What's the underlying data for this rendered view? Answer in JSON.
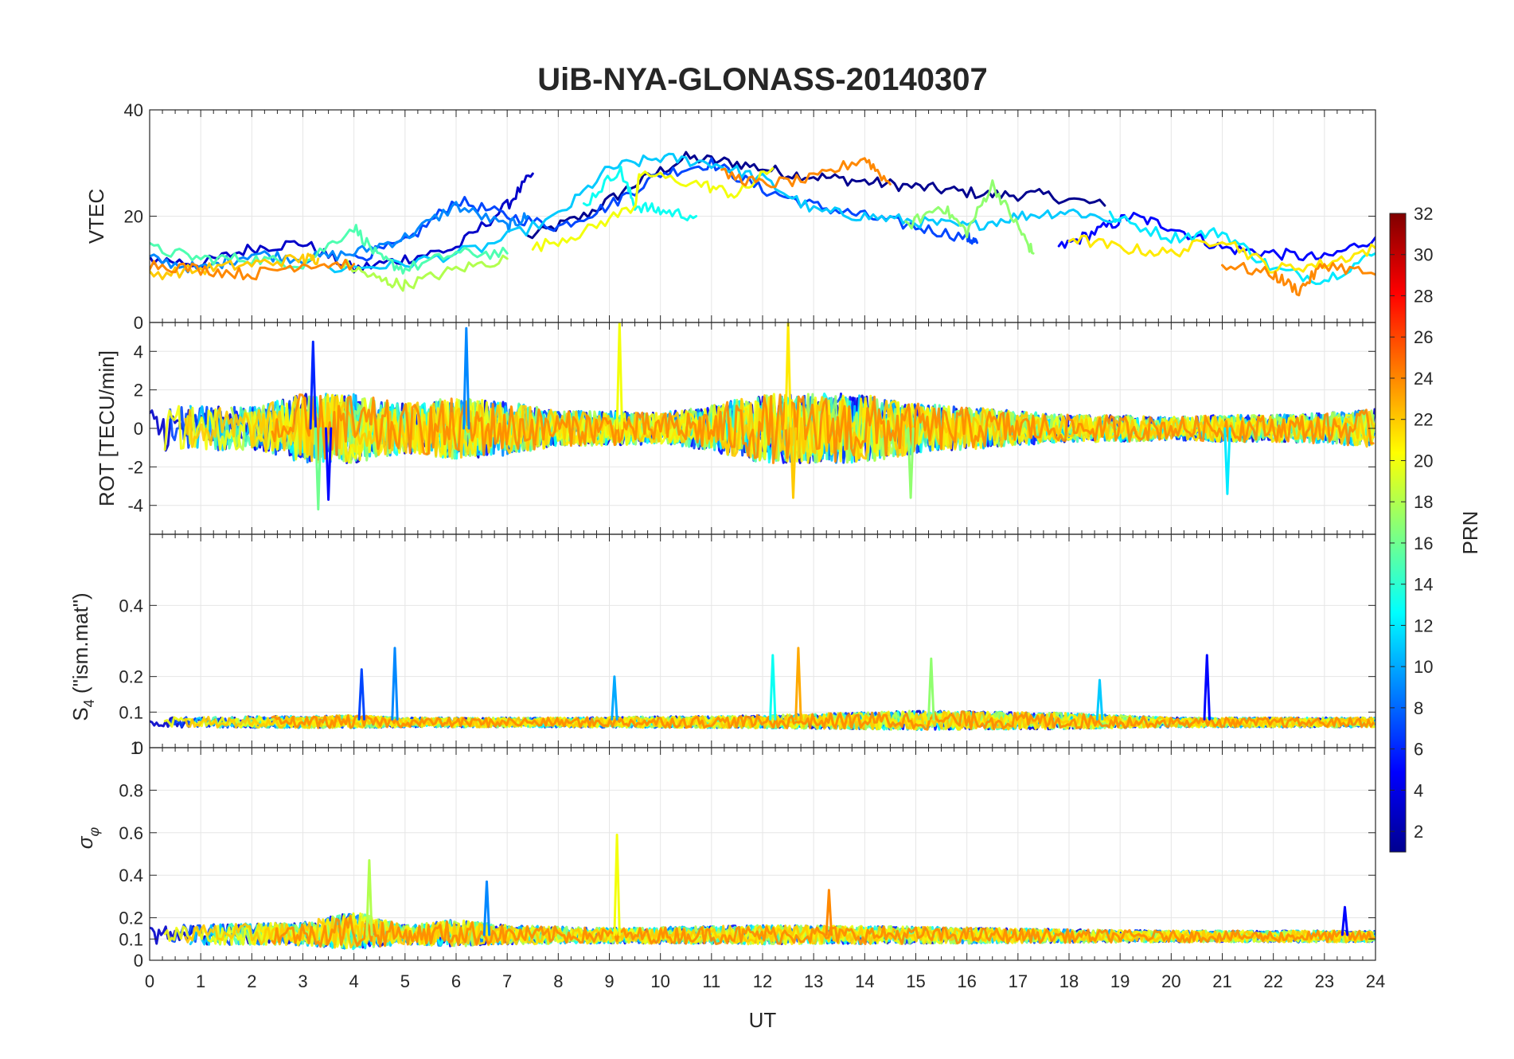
{
  "chart_data": {
    "type": "line",
    "title": "UiB-NYA-GLONASS-20140307",
    "xlabel": "UT",
    "xlim": [
      0,
      24
    ],
    "xticks": [
      "0",
      "1",
      "2",
      "3",
      "4",
      "5",
      "6",
      "7",
      "8",
      "9",
      "10",
      "11",
      "12",
      "13",
      "14",
      "15",
      "16",
      "17",
      "18",
      "19",
      "20",
      "21",
      "22",
      "23",
      "24"
    ],
    "colorbar": {
      "label": "PRN",
      "range": [
        1,
        32
      ],
      "ticks": [
        "2",
        "4",
        "6",
        "8",
        "10",
        "12",
        "14",
        "16",
        "18",
        "20",
        "22",
        "24",
        "26",
        "28",
        "30",
        "32"
      ]
    },
    "panels": [
      {
        "id": "vtec",
        "ylabel": "VTEC",
        "ylim": [
          0,
          40
        ],
        "yticks": [
          {
            "v": 0,
            "label": "0"
          },
          {
            "v": 20,
            "label": "20"
          },
          {
            "v": 40,
            "label": "40"
          }
        ],
        "series": [
          {
            "prn": 1,
            "x": [
              7.4,
              8.5,
              9.5,
              10.5,
              11.5,
              12.5,
              13.5,
              14.5,
              15.5,
              16.5,
              17.5,
              18.7
            ],
            "y": [
              16,
              20,
              26,
              31,
              30,
              28,
              27,
              26,
              25,
              24,
              24,
              22
            ]
          },
          {
            "prn": 3,
            "x": [
              0,
              1,
              2,
              3,
              4,
              5,
              6,
              7,
              7.5
            ],
            "y": [
              12,
              11,
              14,
              15,
              10,
              12,
              14,
              22,
              28
            ]
          },
          {
            "prn": 5,
            "x": [
              17.8,
              18.5,
              19.2,
              20,
              21,
              22,
              23,
              24
            ],
            "y": [
              14,
              17,
              20,
              18,
              14,
              13,
              12,
              16
            ]
          },
          {
            "prn": 7,
            "x": [
              4,
              5,
              6,
              7,
              8,
              9,
              10,
              11,
              12,
              13,
              14,
              15,
              16,
              16.2
            ],
            "y": [
              12,
              15,
              23,
              20,
              18,
              22,
              28,
              30,
              25,
              22,
              20,
              18,
              16,
              15
            ]
          },
          {
            "prn": 9,
            "x": [
              0,
              1,
              2,
              3,
              4,
              5,
              6,
              7,
              7.4
            ],
            "y": [
              12,
              10,
              13,
              12,
              13,
              16,
              22,
              18,
              20
            ]
          },
          {
            "prn": 11,
            "x": [
              3.5,
              5,
              6.5,
              8,
              9,
              10,
              11,
              12,
              13,
              14,
              15,
              16,
              17,
              18,
              19
            ],
            "y": [
              10,
              11,
              14,
              20,
              29,
              31,
              30,
              27,
              21,
              20,
              19,
              18,
              20,
              21,
              19
            ]
          },
          {
            "prn": 12,
            "x": [
              18.8,
              20,
              21,
              22,
              23,
              24
            ],
            "y": [
              20,
              16,
              17,
              10,
              8,
              13
            ]
          },
          {
            "prn": 13,
            "x": [
              8.5,
              9.2,
              9.5,
              10,
              10.7
            ],
            "y": [
              22,
              29,
              22,
              21,
              20
            ]
          },
          {
            "prn": 15,
            "x": [
              0,
              1,
              2,
              3,
              4,
              4.5,
              5,
              6,
              7
            ],
            "y": [
              14,
              12,
              12,
              11,
              18,
              12,
              10,
              13,
              13
            ]
          },
          {
            "prn": 17,
            "x": [
              14.8,
              15.5,
              16,
              16.5,
              17,
              17.3
            ],
            "y": [
              18,
              22,
              17,
              26,
              18,
              13
            ]
          },
          {
            "prn": 18,
            "x": [
              3.8,
              4.5,
              5,
              6,
              7
            ],
            "y": [
              11,
              8,
              7,
              10,
              12
            ]
          },
          {
            "prn": 20,
            "x": [
              7.5,
              8.5,
              9.5,
              9.6,
              10.8,
              11.5,
              12.2
            ],
            "y": [
              14,
              17,
              22,
              28,
              26,
              24,
              29
            ]
          },
          {
            "prn": 21,
            "x": [
              18,
              19,
              20,
              21,
              22,
              23,
              24
            ],
            "y": [
              16,
              14,
              13,
              16,
              10,
              11,
              14
            ]
          },
          {
            "prn": 22,
            "x": [
              0,
              1,
              2,
              3,
              3.3
            ],
            "y": [
              9,
              10,
              11,
              12,
              12
            ]
          },
          {
            "prn": 24,
            "x": [
              0,
              1,
              2,
              3,
              4
            ],
            "y": [
              11,
              10,
              9,
              11,
              11
            ]
          },
          {
            "prn": 24,
            "x": [
              11.2,
              12,
              13,
              14,
              14.5
            ],
            "y": [
              28,
              26,
              27,
              31,
              26
            ]
          },
          {
            "prn": 24,
            "x": [
              21,
              22,
              22.5,
              23,
              24
            ],
            "y": [
              11,
              9,
              6,
              11,
              9
            ]
          }
        ]
      },
      {
        "id": "rot",
        "ylabel": "ROT [TECU/min]",
        "ylim": [
          -5.5,
          5.5
        ],
        "yticks": [
          {
            "v": -4,
            "label": "-4"
          },
          {
            "v": -2,
            "label": "-2"
          },
          {
            "v": 0,
            "label": "0"
          },
          {
            "v": 2,
            "label": "2"
          },
          {
            "v": 4,
            "label": "4"
          }
        ],
        "noise": {
          "amp_profile_x": [
            0,
            2,
            3,
            4,
            5,
            6,
            7,
            8,
            9,
            10,
            11,
            12,
            13,
            14,
            15,
            16,
            17,
            18,
            19,
            20,
            21,
            22,
            23,
            24
          ],
          "amp_profile_y": [
            1.2,
            1.1,
            1.8,
            1.8,
            1.3,
            1.6,
            1.4,
            0.9,
            0.9,
            0.8,
            1.2,
            1.8,
            1.8,
            1.8,
            1.3,
            1.1,
            0.9,
            0.7,
            0.7,
            0.6,
            0.7,
            0.7,
            0.8,
            1.0
          ]
        },
        "spikes": [
          {
            "prn": 6,
            "x": 3.2,
            "y": 4.5
          },
          {
            "prn": 5,
            "x": 3.5,
            "y": -3.7
          },
          {
            "prn": 16,
            "x": 3.3,
            "y": -4.2
          },
          {
            "prn": 9,
            "x": 6.2,
            "y": 5.2
          },
          {
            "prn": 20,
            "x": 9.2,
            "y": 5.5
          },
          {
            "prn": 21,
            "x": 12.5,
            "y": 5.5
          },
          {
            "prn": 22,
            "x": 12.6,
            "y": -3.6
          },
          {
            "prn": 17,
            "x": 14.9,
            "y": -3.6
          },
          {
            "prn": 12,
            "x": 21.1,
            "y": -3.4
          }
        ]
      },
      {
        "id": "s4",
        "ylabel": "S4 (\"ism.mat\")",
        "ylabel_main": "S",
        "ylabel_sub": "4",
        "ylabel_rest": " (\"ism.mat\")",
        "ylim": [
          0,
          0.6
        ],
        "yticks": [
          {
            "v": 0.1,
            "label": "0.1"
          },
          {
            "v": 0.2,
            "label": "0.2"
          },
          {
            "v": 0.4,
            "label": "0.4"
          }
        ],
        "bottom_label": "0",
        "top_label_of_next": "1",
        "noise": {
          "amp_profile_x": [
            0,
            4,
            5,
            8,
            12,
            15,
            18,
            20,
            24
          ],
          "amp_profile_y": [
            0.03,
            0.04,
            0.03,
            0.03,
            0.04,
            0.06,
            0.05,
            0.03,
            0.03
          ]
        },
        "spikes": [
          {
            "prn": 7,
            "x": 4.15,
            "y": 0.22
          },
          {
            "prn": 9,
            "x": 4.8,
            "y": 0.28
          },
          {
            "prn": 13,
            "x": 12.2,
            "y": 0.26
          },
          {
            "prn": 23,
            "x": 12.7,
            "y": 0.28
          },
          {
            "prn": 17,
            "x": 15.3,
            "y": 0.25
          },
          {
            "prn": 5,
            "x": 20.7,
            "y": 0.26
          },
          {
            "prn": 10,
            "x": 9.1,
            "y": 0.2
          },
          {
            "prn": 11,
            "x": 18.6,
            "y": 0.19
          }
        ]
      },
      {
        "id": "sigma_phi",
        "ylabel": "σφ",
        "ylabel_main": "σ",
        "ylabel_sub": "φ",
        "ylim": [
          0,
          1
        ],
        "yticks": [
          {
            "v": 0,
            "label": "0"
          },
          {
            "v": 0.1,
            "label": "0.1"
          },
          {
            "v": 0.2,
            "label": "0.2"
          },
          {
            "v": 0.4,
            "label": "0.4"
          },
          {
            "v": 0.6,
            "label": "0.6"
          },
          {
            "v": 0.8,
            "label": "0.8"
          }
        ],
        "noise": {
          "amp_profile_x": [
            0,
            3,
            4,
            5,
            6,
            7,
            9,
            12,
            15,
            18,
            20,
            24
          ],
          "amp_profile_y": [
            0.1,
            0.12,
            0.2,
            0.1,
            0.14,
            0.1,
            0.08,
            0.1,
            0.09,
            0.07,
            0.06,
            0.06
          ]
        },
        "spikes": [
          {
            "prn": 18,
            "x": 4.3,
            "y": 0.47
          },
          {
            "prn": 20,
            "x": 9.15,
            "y": 0.59
          },
          {
            "prn": 9,
            "x": 6.6,
            "y": 0.37
          },
          {
            "prn": 24,
            "x": 13.3,
            "y": 0.33
          },
          {
            "prn": 5,
            "x": 23.4,
            "y": 0.25
          }
        ]
      }
    ]
  }
}
